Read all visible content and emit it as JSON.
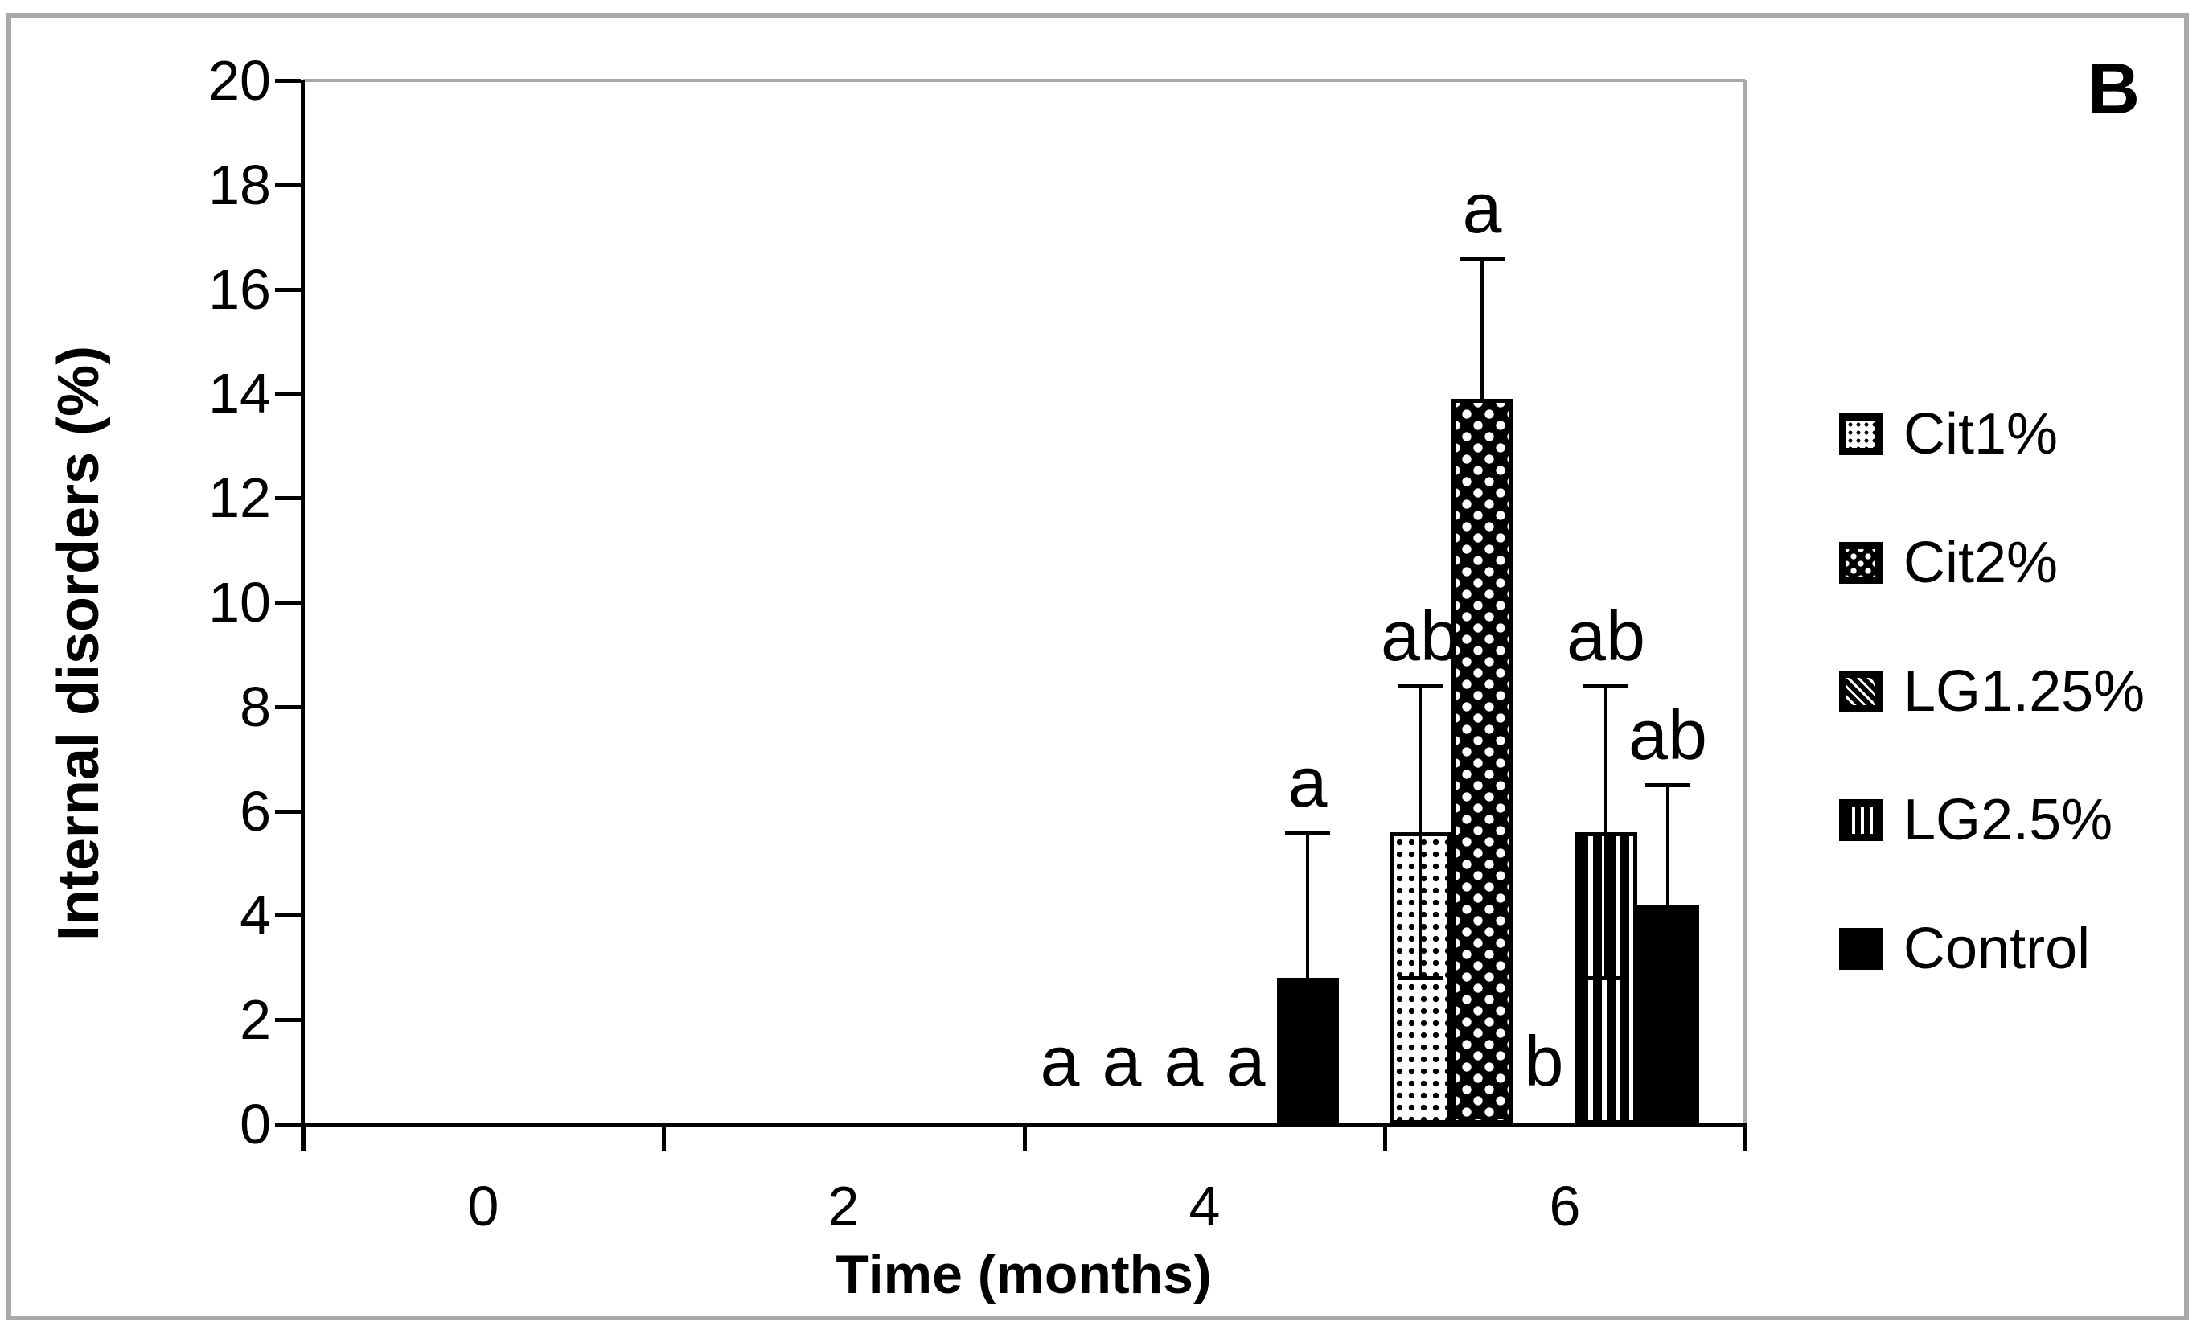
{
  "figure": {
    "panel_label": "B"
  },
  "colors": {
    "ink": "#000000",
    "figure_border": "#a9a9a9",
    "plot_area_border": "#a9a9a9"
  },
  "chart_data": {
    "type": "bar",
    "title": "",
    "xlabel": "Time (months)",
    "ylabel": "Internal disorders (%)",
    "categories": [
      "0",
      "2",
      "4",
      "6"
    ],
    "ylim": [
      0,
      20
    ],
    "ytick_step": 2,
    "grid": false,
    "legend_position": "right",
    "series": [
      {
        "name": "Cit1%",
        "pattern": "dot-grid",
        "values": [
          0,
          0,
          0,
          5.6
        ],
        "error_plus": [
          0,
          0,
          0,
          2.8
        ],
        "error_minus": [
          0,
          0,
          0,
          2.8
        ],
        "letters": [
          "",
          "",
          "a",
          "ab"
        ]
      },
      {
        "name": "Cit2%",
        "pattern": "white-dots-on-black",
        "values": [
          0,
          0,
          0,
          13.9
        ],
        "error_plus": [
          0,
          0,
          0,
          2.7
        ],
        "error_minus": [
          0,
          0,
          0,
          0
        ],
        "letters": [
          "",
          "",
          "a",
          "a"
        ]
      },
      {
        "name": "LG1.25%",
        "pattern": "diagonal-stripes",
        "values": [
          0,
          0,
          0,
          0
        ],
        "error_plus": [
          0,
          0,
          0,
          0
        ],
        "error_minus": [
          0,
          0,
          0,
          0
        ],
        "letters": [
          "",
          "",
          "a",
          "b"
        ]
      },
      {
        "name": "LG2.5%",
        "pattern": "vertical-stripes",
        "values": [
          0,
          0,
          0,
          5.6
        ],
        "error_plus": [
          0,
          0,
          0,
          2.8
        ],
        "error_minus": [
          0,
          0,
          0,
          2.8
        ],
        "letters": [
          "",
          "",
          "a",
          "ab"
        ]
      },
      {
        "name": "Control",
        "pattern": "solid",
        "values": [
          0,
          0,
          2.8,
          4.2
        ],
        "error_plus": [
          0,
          0,
          2.8,
          2.3
        ],
        "error_minus": [
          0,
          0,
          0,
          0
        ],
        "letters": [
          "",
          "",
          "a",
          "ab"
        ]
      }
    ]
  }
}
